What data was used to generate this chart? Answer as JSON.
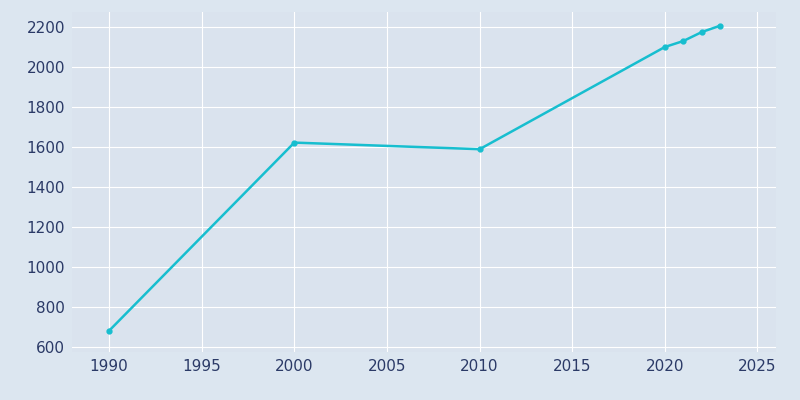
{
  "years": [
    1990,
    2000,
    2010,
    2020,
    2021,
    2022,
    2023
  ],
  "population": [
    681,
    1622,
    1589,
    2100,
    2130,
    2175,
    2207
  ],
  "line_color": "#17BECF",
  "marker_color": "#17BECF",
  "bg_color": "#DCE6F0",
  "axes_bg_color": "#DAE3EE",
  "grid_color": "#ffffff",
  "tick_color": "#2B3A67",
  "xlim": [
    1988,
    2026
  ],
  "ylim": [
    575,
    2275
  ],
  "xticks": [
    1990,
    1995,
    2000,
    2005,
    2010,
    2015,
    2020,
    2025
  ],
  "yticks": [
    600,
    800,
    1000,
    1200,
    1400,
    1600,
    1800,
    2000,
    2200
  ],
  "line_width": 1.8,
  "marker_size": 3.5
}
